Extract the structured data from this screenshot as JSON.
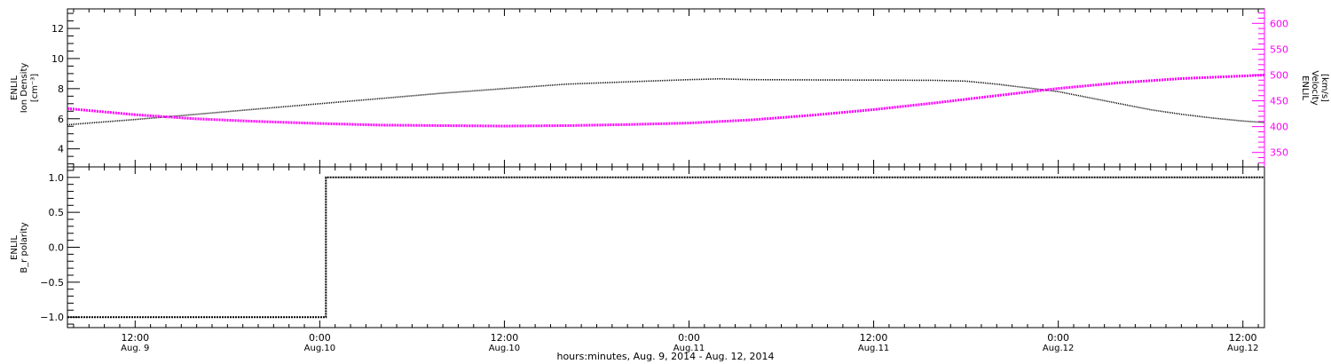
{
  "colors": {
    "density": "#000000",
    "velocity": "#ff00ff",
    "polarity": "#000000",
    "axis": "#000000"
  },
  "chart_data": [
    {
      "type": "line",
      "xlabel": "hours:minutes, Aug.  9, 2014 - Aug. 12, 2014",
      "x_unit": "hours since 2014-08-09 00:00",
      "xlim": [
        7.6,
        85.4
      ],
      "x_ticks": [
        {
          "x": 12,
          "time": "12:00",
          "date": "Aug. 9"
        },
        {
          "x": 24,
          "time": "0:00",
          "date": "Aug.10"
        },
        {
          "x": 36,
          "time": "12:00",
          "date": "Aug.10"
        },
        {
          "x": 48,
          "time": "0:00",
          "date": "Aug.11"
        },
        {
          "x": 60,
          "time": "12:00",
          "date": "Aug.11"
        },
        {
          "x": 72,
          "time": "0:00",
          "date": "Aug.12"
        },
        {
          "x": 84,
          "time": "12:00",
          "date": "Aug.12"
        }
      ],
      "left_axis": {
        "label": "ENLIL Ion Density [cm⁻³]",
        "label_lines": [
          "ENLIL",
          "Ion Density",
          "[cm⁻³]"
        ],
        "ylim": [
          2.8,
          13.3
        ],
        "ticks": [
          4,
          6,
          8,
          10,
          12
        ]
      },
      "right_axis": {
        "label": "ENLIL Velocity [km/s]",
        "label_lines": [
          "ENLIL",
          "Velocity",
          "[km/s]"
        ],
        "ylim": [
          322,
          628
        ],
        "ticks": [
          350,
          400,
          450,
          500,
          550,
          600
        ]
      },
      "series": [
        {
          "name": "ENLIL Ion Density [cm⁻³]",
          "axis": "left",
          "color": "#000000",
          "points": [
            [
              7.6,
              5.6
            ],
            [
              12,
              5.95
            ],
            [
              16,
              6.3
            ],
            [
              20,
              6.65
            ],
            [
              24,
              7.0
            ],
            [
              28,
              7.35
            ],
            [
              32,
              7.7
            ],
            [
              36,
              8.0
            ],
            [
              40,
              8.3
            ],
            [
              44,
              8.45
            ],
            [
              48,
              8.6
            ],
            [
              50,
              8.65
            ],
            [
              52,
              8.6
            ],
            [
              56,
              8.58
            ],
            [
              60,
              8.57
            ],
            [
              64,
              8.55
            ],
            [
              66,
              8.5
            ],
            [
              68,
              8.3
            ],
            [
              70,
              8.05
            ],
            [
              72,
              7.8
            ],
            [
              74,
              7.4
            ],
            [
              76,
              7.0
            ],
            [
              78,
              6.6
            ],
            [
              80,
              6.3
            ],
            [
              82,
              6.05
            ],
            [
              84,
              5.85
            ],
            [
              85.4,
              5.75
            ]
          ]
        },
        {
          "name": "ENLIL Velocity [km/s]",
          "axis": "right",
          "color": "#ff00ff",
          "points": [
            [
              7.6,
              435
            ],
            [
              12,
              423
            ],
            [
              16,
              415
            ],
            [
              20,
              410
            ],
            [
              24,
              406
            ],
            [
              28,
              403
            ],
            [
              32,
              402
            ],
            [
              36,
              401
            ],
            [
              40,
              402
            ],
            [
              44,
              404
            ],
            [
              48,
              407
            ],
            [
              52,
              413
            ],
            [
              56,
              422
            ],
            [
              60,
              433
            ],
            [
              64,
              446
            ],
            [
              68,
              460
            ],
            [
              72,
              474
            ],
            [
              76,
              485
            ],
            [
              80,
              493
            ],
            [
              84,
              498
            ],
            [
              85.4,
              500
            ]
          ]
        }
      ]
    },
    {
      "type": "line",
      "ylabel": "ENLIL B_r polarity",
      "ylabel_lines": [
        "ENLIL",
        "B_r polarity"
      ],
      "ylim": [
        -1.15,
        1.15
      ],
      "y_ticks": [
        "1.0",
        "0.5",
        "0.0",
        "−0.5",
        "−1.0"
      ],
      "y_tick_values": [
        1.0,
        0.5,
        0.0,
        -0.5,
        -1.0
      ],
      "xlim": [
        7.6,
        85.4
      ],
      "series": [
        {
          "name": "ENLIL B_r polarity",
          "color": "#000000",
          "points": [
            [
              7.6,
              -1.0
            ],
            [
              24.4,
              -1.0
            ],
            [
              24.4,
              1.0
            ],
            [
              85.4,
              1.0
            ]
          ]
        }
      ]
    }
  ]
}
